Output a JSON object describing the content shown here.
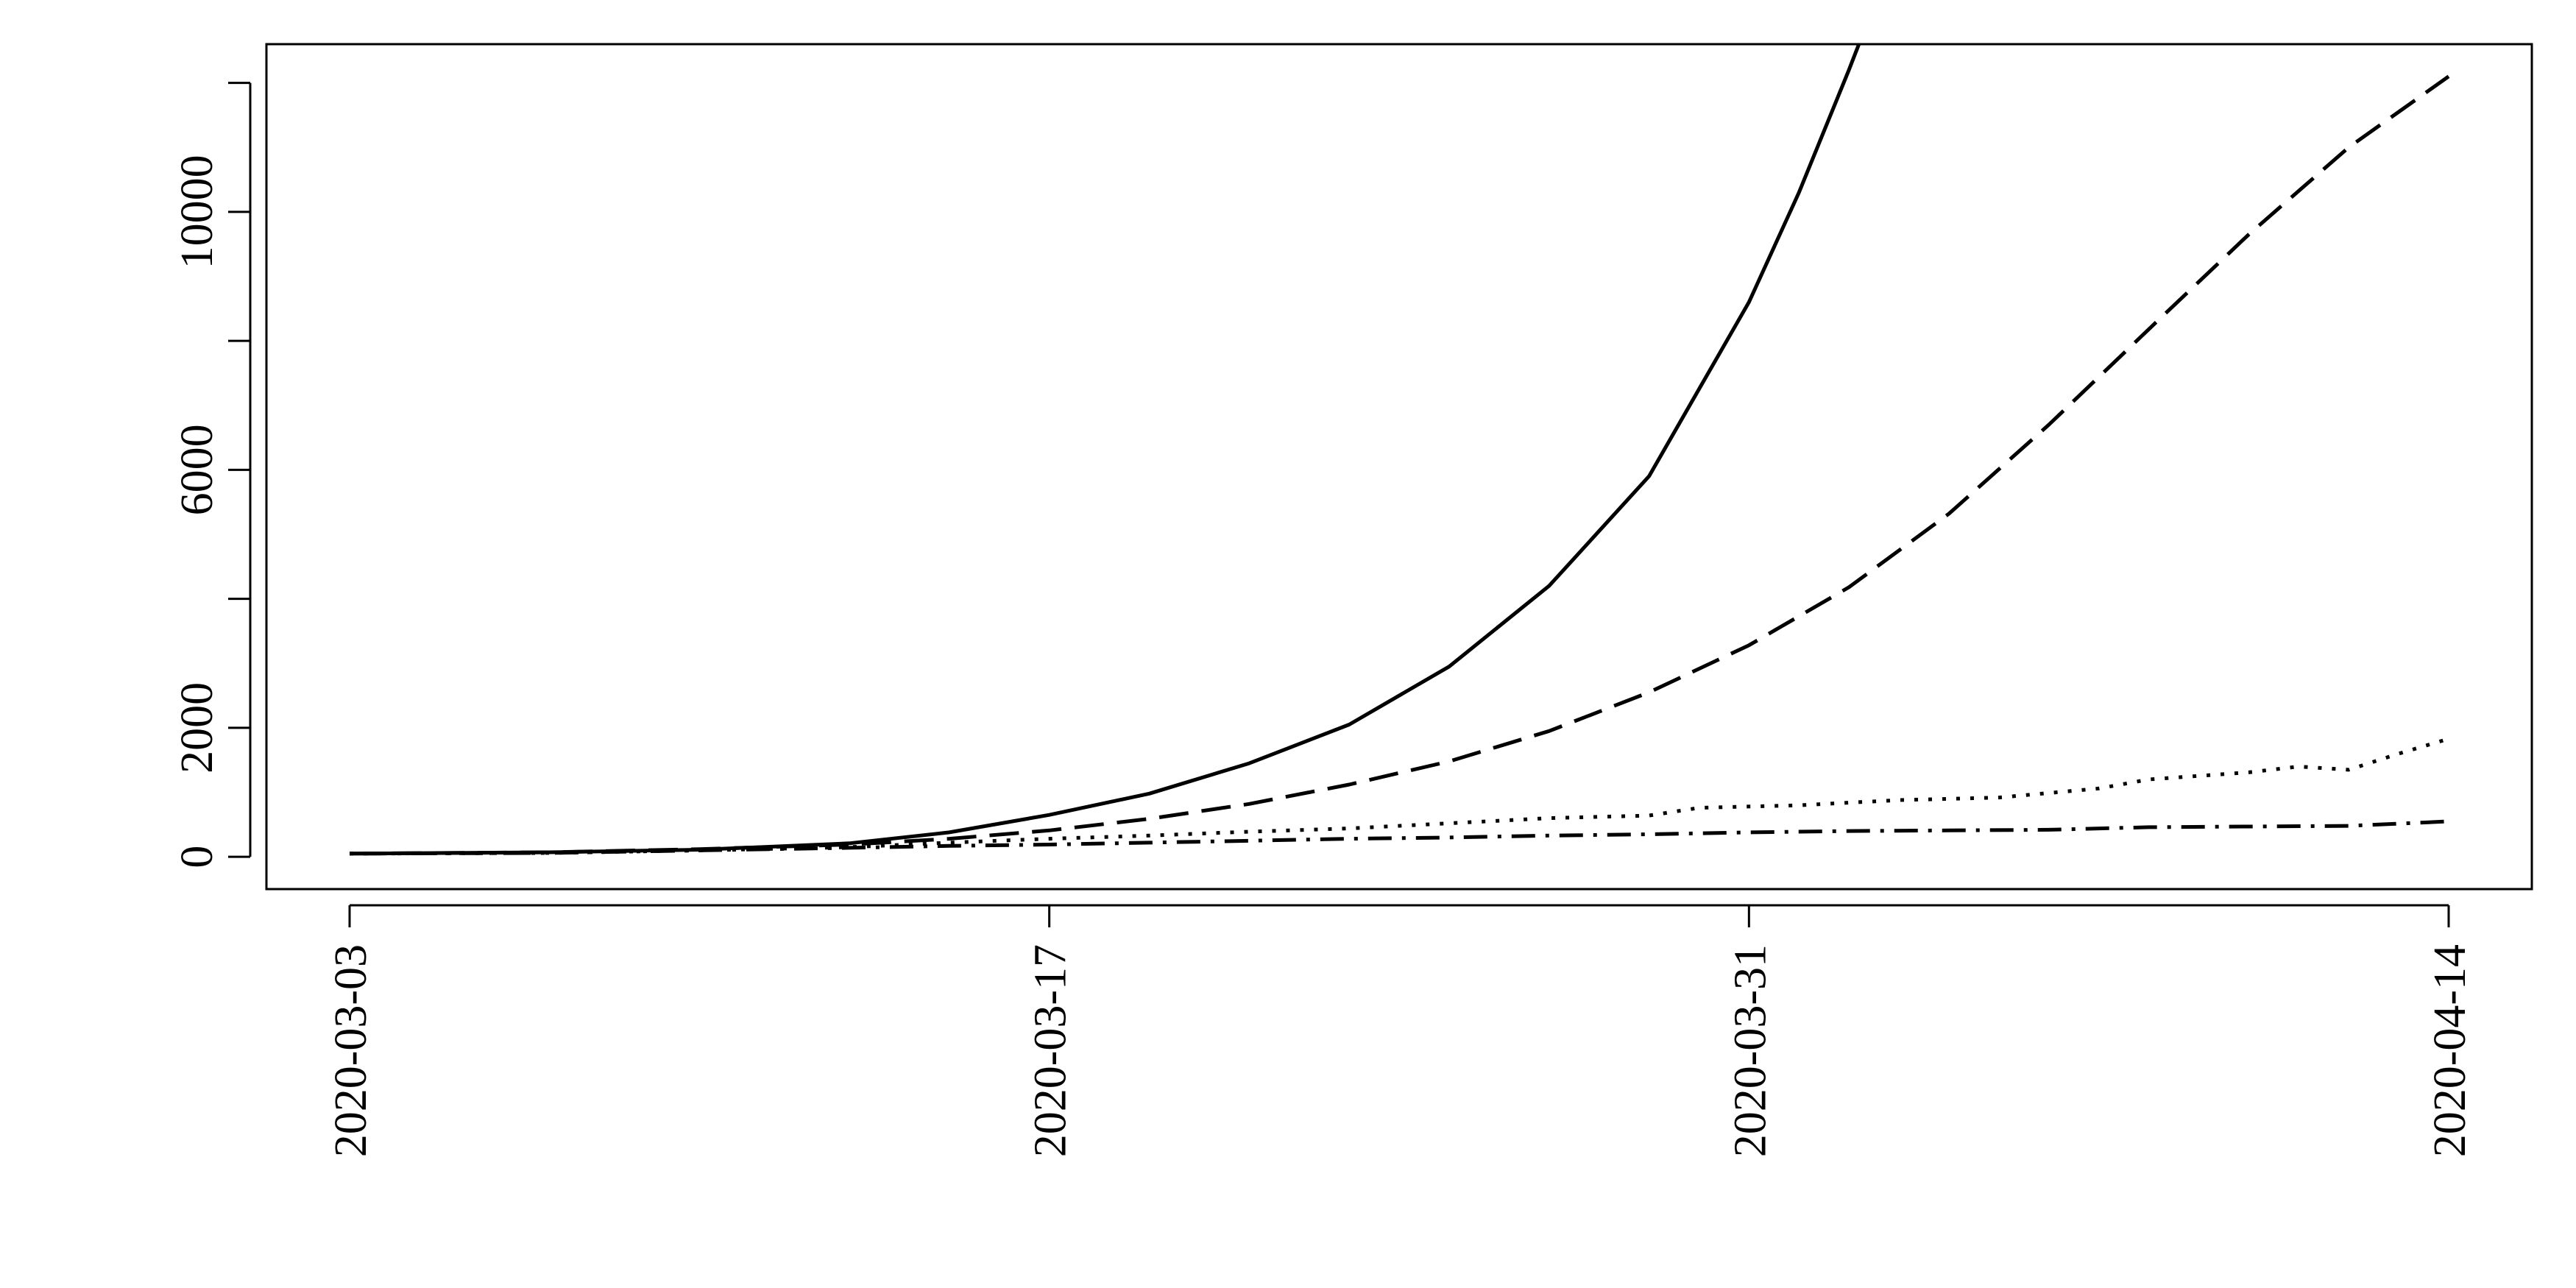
{
  "chart_data": {
    "type": "line",
    "title": "",
    "xlabel": "",
    "ylabel": "",
    "x_start": "2020-03-03",
    "x_end": "2020-04-14",
    "xlim": [
      "2020-03-01",
      "2020-04-15"
    ],
    "ylim": [
      -500,
      12600
    ],
    "x_ticks": [
      "2020-03-03",
      "2020-03-17",
      "2020-03-31",
      "2020-04-14"
    ],
    "y_ticks": [
      0,
      2000,
      4000,
      6000,
      8000,
      10000,
      12000
    ],
    "y_tick_labels": [
      "0",
      "2000",
      "",
      "6000",
      "",
      "10000",
      ""
    ],
    "grid": false,
    "legend": "none",
    "series": [
      {
        "line_style": "solid",
        "points": [
          [
            "2020-03-03",
            50
          ],
          [
            "2020-03-07",
            70
          ],
          [
            "2020-03-10",
            110
          ],
          [
            "2020-03-13",
            210
          ],
          [
            "2020-03-15",
            380
          ],
          [
            "2020-03-17",
            650
          ],
          [
            "2020-03-19",
            980
          ],
          [
            "2020-03-21",
            1450
          ],
          [
            "2020-03-23",
            2050
          ],
          [
            "2020-03-25",
            2950
          ],
          [
            "2020-03-27",
            4200
          ],
          [
            "2020-03-29",
            5900
          ],
          [
            "2020-03-31",
            8600
          ],
          [
            "2020-04-01",
            10300
          ],
          [
            "2020-04-02",
            12200
          ],
          [
            "2020-04-03",
            14200
          ]
        ]
      },
      {
        "line_style": "dashed",
        "points": [
          [
            "2020-03-03",
            50
          ],
          [
            "2020-03-07",
            70
          ],
          [
            "2020-03-10",
            120
          ],
          [
            "2020-03-13",
            190
          ],
          [
            "2020-03-15",
            280
          ],
          [
            "2020-03-17",
            410
          ],
          [
            "2020-03-19",
            590
          ],
          [
            "2020-03-21",
            820
          ],
          [
            "2020-03-23",
            1120
          ],
          [
            "2020-03-25",
            1480
          ],
          [
            "2020-03-27",
            1950
          ],
          [
            "2020-03-29",
            2550
          ],
          [
            "2020-03-31",
            3280
          ],
          [
            "2020-04-02",
            4180
          ],
          [
            "2020-04-04",
            5320
          ],
          [
            "2020-04-06",
            6700
          ],
          [
            "2020-04-08",
            8180
          ],
          [
            "2020-04-10",
            9650
          ],
          [
            "2020-04-12",
            11000
          ],
          [
            "2020-04-14",
            12100
          ]
        ]
      },
      {
        "line_style": "dotted",
        "points": [
          [
            "2020-03-03",
            50
          ],
          [
            "2020-03-07",
            60
          ],
          [
            "2020-03-10",
            100
          ],
          [
            "2020-03-13",
            150
          ],
          [
            "2020-03-15",
            220
          ],
          [
            "2020-03-17",
            280
          ],
          [
            "2020-03-19",
            330
          ],
          [
            "2020-03-21",
            390
          ],
          [
            "2020-03-23",
            440
          ],
          [
            "2020-03-25",
            520
          ],
          [
            "2020-03-27",
            600
          ],
          [
            "2020-03-29",
            640
          ],
          [
            "2020-03-30",
            760
          ],
          [
            "2020-04-01",
            800
          ],
          [
            "2020-04-03",
            880
          ],
          [
            "2020-04-05",
            920
          ],
          [
            "2020-04-07",
            1060
          ],
          [
            "2020-04-08",
            1200
          ],
          [
            "2020-04-10",
            1310
          ],
          [
            "2020-04-11",
            1400
          ],
          [
            "2020-04-12",
            1350
          ],
          [
            "2020-04-13",
            1600
          ],
          [
            "2020-04-14",
            1830
          ]
        ]
      },
      {
        "line_style": "dotdash",
        "points": [
          [
            "2020-03-03",
            50
          ],
          [
            "2020-03-07",
            60
          ],
          [
            "2020-03-10",
            100
          ],
          [
            "2020-03-13",
            140
          ],
          [
            "2020-03-15",
            170
          ],
          [
            "2020-03-17",
            190
          ],
          [
            "2020-03-19",
            220
          ],
          [
            "2020-03-21",
            250
          ],
          [
            "2020-03-23",
            280
          ],
          [
            "2020-03-25",
            300
          ],
          [
            "2020-03-27",
            330
          ],
          [
            "2020-03-29",
            350
          ],
          [
            "2020-03-31",
            380
          ],
          [
            "2020-04-02",
            400
          ],
          [
            "2020-04-04",
            410
          ],
          [
            "2020-04-06",
            420
          ],
          [
            "2020-04-08",
            460
          ],
          [
            "2020-04-10",
            470
          ],
          [
            "2020-04-12",
            480
          ],
          [
            "2020-04-14",
            550
          ]
        ]
      }
    ]
  }
}
